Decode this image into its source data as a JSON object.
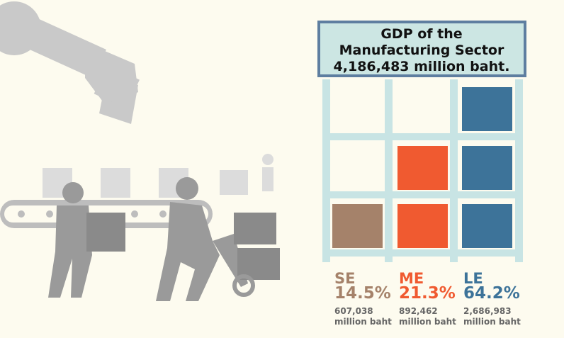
{
  "title": [
    "GDP of the",
    "Manufacturing Sector",
    "4,186,483 million baht."
  ],
  "segments": [
    {
      "code": "SE",
      "share": "14.5%",
      "value": "607,038",
      "unit": "million baht",
      "color": "#a5826a"
    },
    {
      "code": "ME",
      "share": "21.3%",
      "value": "892,462",
      "unit": "million baht",
      "color": "#f05a30"
    },
    {
      "code": "LE",
      "share": "64.2%",
      "value": "2,686,983",
      "unit": "million baht",
      "color": "#3d7399"
    }
  ]
}
